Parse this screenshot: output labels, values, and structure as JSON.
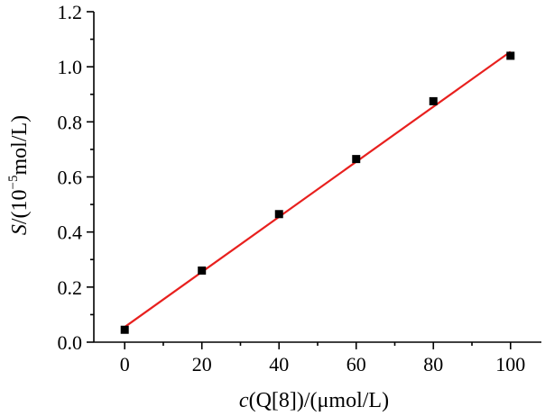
{
  "chart_data": {
    "type": "scatter",
    "title": "",
    "xlabel_parts": [
      "c",
      "(Q[8])/(μmol/L)"
    ],
    "ylabel_parts": [
      "S",
      "/(10",
      "−5",
      "mol/L)"
    ],
    "xlim": [
      -8,
      108
    ],
    "ylim": [
      0,
      1.2
    ],
    "x_ticks": [
      0,
      20,
      40,
      60,
      80,
      100
    ],
    "x_tick_labels": [
      "0",
      "20",
      "40",
      "60",
      "80",
      "100"
    ],
    "y_ticks": [
      0.0,
      0.2,
      0.4,
      0.6,
      0.8,
      1.0,
      1.2
    ],
    "y_tick_labels": [
      "0.0",
      "0.2",
      "0.4",
      "0.6",
      "0.8",
      "1.0",
      "1.2"
    ],
    "series": [
      {
        "x": [
          0,
          20,
          40,
          60,
          80,
          100
        ],
        "y": [
          0.045,
          0.26,
          0.465,
          0.665,
          0.875,
          1.04
        ],
        "marker": "square",
        "color": "#000000"
      }
    ],
    "fit_line": {
      "x": [
        0,
        100
      ],
      "y": [
        0.055,
        1.055
      ],
      "color": "#e8201e"
    },
    "grid": false,
    "legend": "none"
  }
}
